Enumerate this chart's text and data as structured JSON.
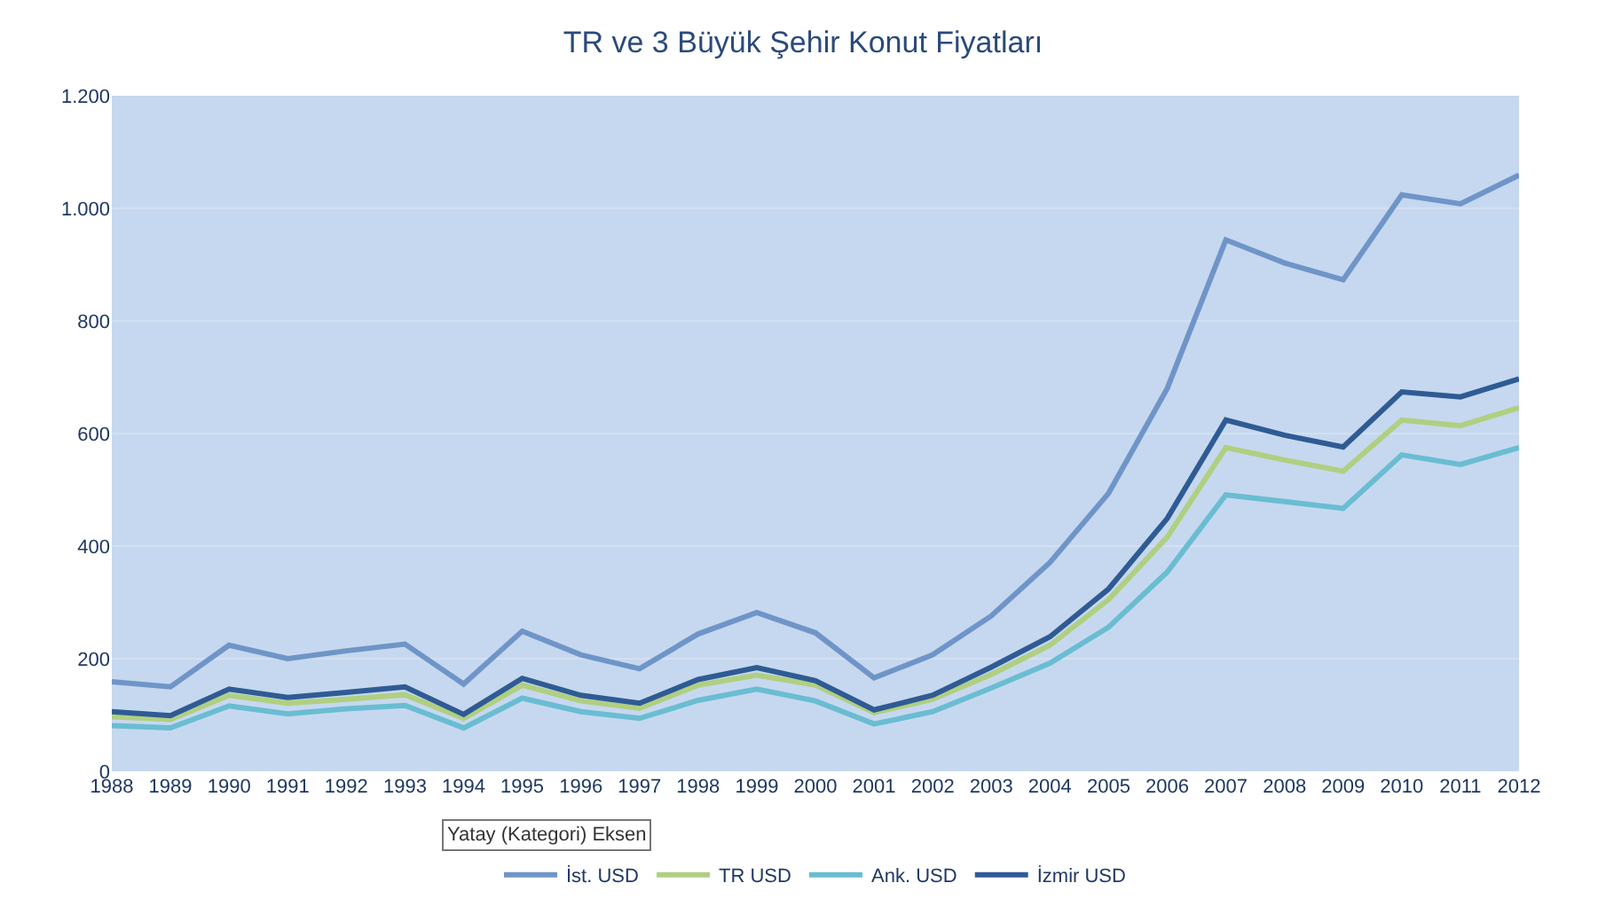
{
  "chart_data": {
    "type": "line",
    "title": "TR ve 3 Büyük Şehir Konut Fiyatları",
    "categories": [
      "1988",
      "1989",
      "1990",
      "1991",
      "1992",
      "1993",
      "1994",
      "1995",
      "1996",
      "1997",
      "1998",
      "1999",
      "2000",
      "2001",
      "2002",
      "2003",
      "2004",
      "2005",
      "2006",
      "2007",
      "2008",
      "2009",
      "2010",
      "2011",
      "2012"
    ],
    "series": [
      {
        "name": "İst. USD",
        "color": "#6f95c8",
        "values": [
          159,
          150,
          224,
          200,
          214,
          226,
          155,
          249,
          207,
          182,
          244,
          282,
          246,
          166,
          207,
          276,
          371,
          494,
          680,
          944,
          903,
          873,
          1024,
          1008,
          1059
        ]
      },
      {
        "name": "TR USD",
        "color": "#b0cf80",
        "values": [
          97,
          92,
          135,
          121,
          128,
          136,
          94,
          153,
          125,
          112,
          153,
          171,
          153,
          104,
          128,
          172,
          224,
          305,
          416,
          575,
          553,
          533,
          624,
          614,
          646
        ]
      },
      {
        "name": "Ank. USD",
        "color": "#69bdd2",
        "values": [
          81,
          77,
          116,
          102,
          111,
          117,
          77,
          130,
          106,
          94,
          126,
          146,
          125,
          84,
          106,
          148,
          192,
          256,
          354,
          491,
          479,
          467,
          562,
          545,
          575
        ]
      },
      {
        "name": "İzmir USD",
        "color": "#2f5b94",
        "values": [
          106,
          99,
          146,
          131,
          140,
          150,
          101,
          165,
          135,
          121,
          163,
          184,
          161,
          109,
          135,
          185,
          239,
          324,
          449,
          624,
          597,
          576,
          674,
          665,
          697
        ]
      }
    ],
    "ylim": [
      0,
      1200
    ],
    "yticks": [
      0,
      200,
      400,
      600,
      800,
      {
        "value": 1000,
        "label": "1.000"
      },
      {
        "value": 1200,
        "label": "1.200"
      }
    ],
    "grid": "y",
    "legend": "bottom",
    "marker": "none",
    "line_style": "solid",
    "annotations": [
      "Yatay (Kategori) Eksen"
    ]
  }
}
